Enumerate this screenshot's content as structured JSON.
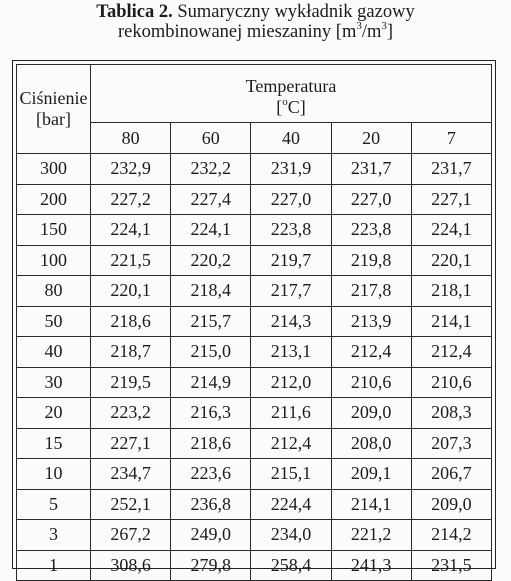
{
  "caption": {
    "bold_prefix": "Tablica 2.",
    "line1_rest": " Sumaryczny wykładnik gazowy",
    "line2_prefix": "rekombinowanej mieszaniny [m",
    "sup1": "3",
    "slash_m": "/m",
    "sup2": "3",
    "line2_suffix": "]"
  },
  "table": {
    "pressure_header_line1": "Ciśnienie",
    "pressure_header_line2": "[bar]",
    "temperature_header": "Temperatura",
    "temperature_unit_open": "[",
    "temperature_unit_sup": "o",
    "temperature_unit_rest": "C]",
    "temperature_columns": [
      "80",
      "60",
      "40",
      "20",
      "7"
    ],
    "rows": [
      {
        "pressure": "300",
        "values": [
          "232,9",
          "232,2",
          "231,9",
          "231,7",
          "231,7"
        ]
      },
      {
        "pressure": "200",
        "values": [
          "227,2",
          "227,4",
          "227,0",
          "227,0",
          "227,1"
        ]
      },
      {
        "pressure": "150",
        "values": [
          "224,1",
          "224,1",
          "223,8",
          "223,8",
          "224,1"
        ]
      },
      {
        "pressure": "100",
        "values": [
          "221,5",
          "220,2",
          "219,7",
          "219,8",
          "220,1"
        ]
      },
      {
        "pressure": "80",
        "values": [
          "220,1",
          "218,4",
          "217,7",
          "217,8",
          "218,1"
        ]
      },
      {
        "pressure": "50",
        "values": [
          "218,6",
          "215,7",
          "214,3",
          "213,9",
          "214,1"
        ]
      },
      {
        "pressure": "40",
        "values": [
          "218,7",
          "215,0",
          "213,1",
          "212,4",
          "212,4"
        ]
      },
      {
        "pressure": "30",
        "values": [
          "219,5",
          "214,9",
          "212,0",
          "210,6",
          "210,6"
        ]
      },
      {
        "pressure": "20",
        "values": [
          "223,2",
          "216,3",
          "211,6",
          "209,0",
          "208,3"
        ]
      },
      {
        "pressure": "15",
        "values": [
          "227,1",
          "218,6",
          "212,4",
          "208,0",
          "207,3"
        ]
      },
      {
        "pressure": "10",
        "values": [
          "234,7",
          "223,6",
          "215,1",
          "209,1",
          "206,7"
        ]
      },
      {
        "pressure": "5",
        "values": [
          "252,1",
          "236,8",
          "224,4",
          "214,1",
          "209,0"
        ]
      },
      {
        "pressure": "3",
        "values": [
          "267,2",
          "249,0",
          "234,0",
          "221,2",
          "214,2"
        ]
      },
      {
        "pressure": "1",
        "values": [
          "308,6",
          "279,8",
          "258,4",
          "241,3",
          "231,5"
        ]
      }
    ]
  }
}
